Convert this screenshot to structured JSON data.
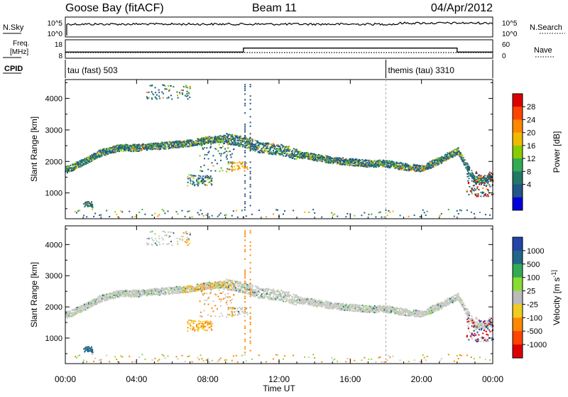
{
  "header": {
    "station": "Goose Bay (fitACF)",
    "beam": "Beam 11",
    "date": "04/Apr/2012"
  },
  "noise_panel": {
    "left_label": "N.Sky",
    "right_label": "N.Search",
    "left_ticks": [
      "10^5",
      "10^0"
    ],
    "right_ticks": [
      "10^5",
      "10^0"
    ]
  },
  "freq_panel": {
    "left_label_top": "Freq.",
    "left_label_bottom": "[MHz]",
    "right_label": "Nave",
    "left_ticks": [
      "18",
      "8"
    ],
    "right_ticks": [
      "60",
      "0"
    ],
    "nave_steps": [
      {
        "from_hr": 0,
        "to_hr": 10,
        "value": 20
      },
      {
        "from_hr": 10,
        "to_hr": 22,
        "value": 33
      },
      {
        "from_hr": 22,
        "to_hr": 24,
        "value": 20
      }
    ],
    "nave_max": 60
  },
  "cpid": {
    "label": "CPID",
    "segments": [
      {
        "start_hr": 0,
        "text": "tau (fast) 503"
      },
      {
        "start_hr": 18,
        "text": "themis (tau) 3310"
      }
    ]
  },
  "power_panel": {
    "ylabel": "Slant Range [km]",
    "cbar_label": "Power [dB]",
    "cbar_ticks": [
      "28",
      "24",
      "20",
      "16",
      "12",
      "8",
      "4"
    ],
    "cbar_colors": [
      "#dd0000",
      "#ff4400",
      "#ff8800",
      "#eebb00",
      "#88cc00",
      "#33aa55",
      "#227766",
      "#225588",
      "#0000dd"
    ]
  },
  "velocity_panel": {
    "ylabel": "Slant Range [km]",
    "cbar_label": "Velocity [m s^-1]",
    "cbar_ticks": [
      "1000",
      "500",
      "100",
      "25",
      "-25",
      "-100",
      "-500",
      "-1000"
    ],
    "cbar_colors": [
      "#2244aa",
      "#226688",
      "#33aa55",
      "#88dd33",
      "#bbbbbb",
      "#eecc22",
      "#ff8800",
      "#ff4400",
      "#dd0000"
    ]
  },
  "x_axis": {
    "label": "Time UT",
    "ticks": [
      "00:00",
      "04:00",
      "08:00",
      "12:00",
      "16:00",
      "20:00",
      "00:00"
    ]
  },
  "chart_data": {
    "type": "heatmap",
    "title": "Goose Bay (fitACF)",
    "xlabel": "Time UT",
    "ylabel": "Slant Range [km]",
    "xlim_hours": [
      0,
      24
    ],
    "ylim_km": [
      180,
      4600
    ],
    "y_ticks": [
      1000,
      2000,
      3000,
      4000
    ],
    "panels": [
      "Power [dB]",
      "Velocity [m s^-1]"
    ],
    "scatter_trace": [
      {
        "t": 0.0,
        "r": 1750
      },
      {
        "t": 1.0,
        "r": 2000
      },
      {
        "t": 2.0,
        "r": 2300
      },
      {
        "t": 3.0,
        "r": 2450
      },
      {
        "t": 4.0,
        "r": 2450
      },
      {
        "t": 5.0,
        "r": 2500
      },
      {
        "t": 6.0,
        "r": 2550
      },
      {
        "t": 7.0,
        "r": 2600
      },
      {
        "t": 8.0,
        "r": 2700
      },
      {
        "t": 9.0,
        "r": 2750
      },
      {
        "t": 10.0,
        "r": 2650
      },
      {
        "t": 11.0,
        "r": 2450
      },
      {
        "t": 12.0,
        "r": 2400
      },
      {
        "t": 13.0,
        "r": 2250
      },
      {
        "t": 14.0,
        "r": 2150
      },
      {
        "t": 15.0,
        "r": 2050
      },
      {
        "t": 16.0,
        "r": 2000
      },
      {
        "t": 17.0,
        "r": 1950
      },
      {
        "t": 18.0,
        "r": 1950
      },
      {
        "t": 19.0,
        "r": 1850
      },
      {
        "t": 20.0,
        "r": 1800
      },
      {
        "t": 21.0,
        "r": 2050
      },
      {
        "t": 22.0,
        "r": 2350
      },
      {
        "t": 23.0,
        "r": 1400
      },
      {
        "t": 24.0,
        "r": 1500
      }
    ]
  }
}
